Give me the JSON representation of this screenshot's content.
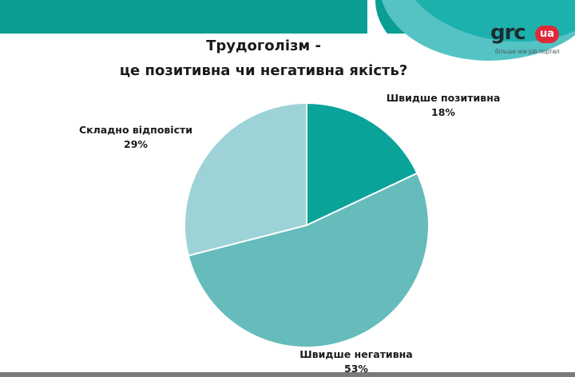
{
  "title": {
    "line1": "Трудоголізм -",
    "line2": "це позитивна чи негативна якість?"
  },
  "logo": {
    "word": "grc",
    "badge": "ua",
    "tagline": "більше ніж job портал"
  },
  "colors": {
    "band": "#0a9e94",
    "positive": "#0aa39a",
    "negative": "#66bbbb",
    "hard": "#9dd3d6",
    "logo_badge": "#e02a3a"
  },
  "chart_data": {
    "type": "pie",
    "title": "Трудоголізм - це позитивна чи негативна якість?",
    "slices": [
      {
        "label": "Швидше позитивна",
        "value": 18,
        "display": "18%",
        "color": "#0aa39a"
      },
      {
        "label": "Швидше негативна",
        "value": 53,
        "display": "53%",
        "color": "#66bbbb"
      },
      {
        "label": "Складно відповісти",
        "value": 29,
        "display": "29%",
        "color": "#9dd3d6"
      }
    ],
    "start_angle": "12 o'clock",
    "direction": "clockwise"
  }
}
